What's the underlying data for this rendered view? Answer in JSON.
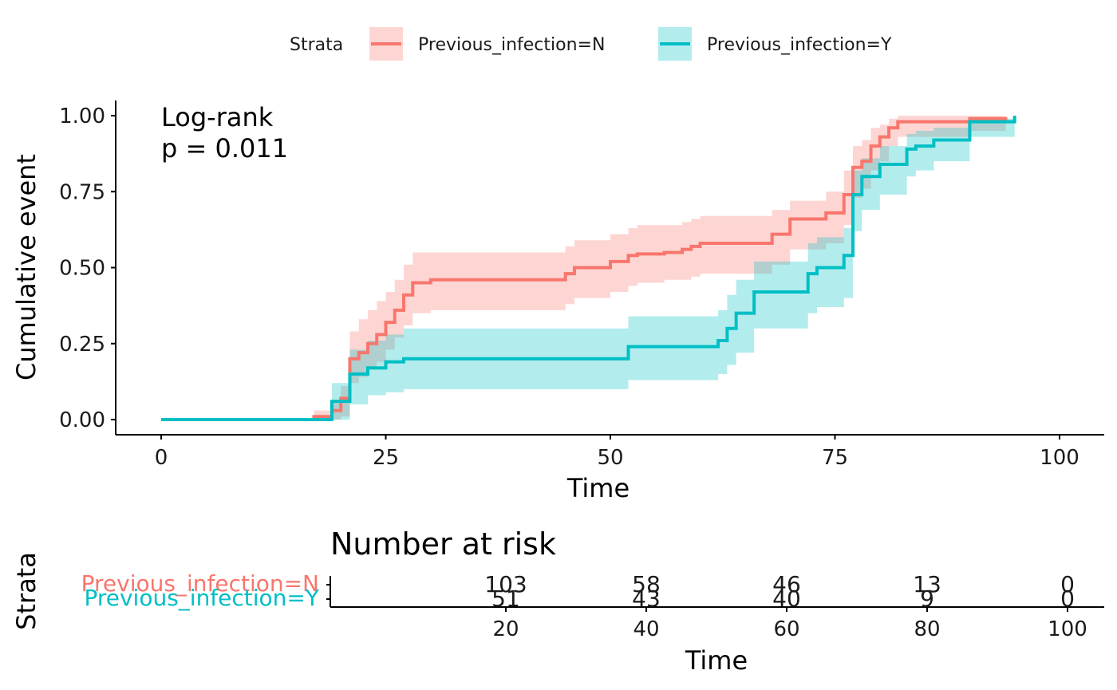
{
  "legend": {
    "title": "Strata",
    "items": [
      {
        "label": "Previous_infection=N",
        "color": "#F8766D"
      },
      {
        "label": "Previous_infection=Y",
        "color": "#00BFC4"
      }
    ]
  },
  "chart_data": [
    {
      "type": "line",
      "subtype": "step-with-confidence-band",
      "xlabel": "Time",
      "ylabel": "Cumulative event",
      "xlim": [
        0,
        100
      ],
      "ylim": [
        0,
        1
      ],
      "xticks": [
        0,
        25,
        50,
        75,
        100
      ],
      "yticks": [
        0.0,
        0.25,
        0.5,
        0.75,
        1.0
      ],
      "ytick_labels": [
        "0.00",
        "0.25",
        "0.50",
        "0.75",
        "1.00"
      ],
      "grid": false,
      "legend_position": "top",
      "annotation": {
        "line1": "Log-rank",
        "line2": "p = 0.011"
      },
      "series": [
        {
          "name": "Previous_infection=N",
          "color": "#F8766D",
          "x": [
            0,
            17,
            19,
            20,
            21,
            22,
            23,
            24,
            25,
            26,
            27,
            28,
            30,
            45,
            46,
            50,
            52,
            53,
            54,
            56,
            58,
            59,
            60,
            62,
            68,
            70,
            74,
            76,
            77,
            78,
            79,
            80,
            81,
            82,
            84,
            88,
            90,
            94
          ],
          "y": [
            0,
            0.01,
            0.03,
            0.07,
            0.2,
            0.22,
            0.25,
            0.28,
            0.32,
            0.36,
            0.41,
            0.45,
            0.46,
            0.48,
            0.5,
            0.52,
            0.54,
            0.545,
            0.545,
            0.55,
            0.56,
            0.57,
            0.58,
            0.58,
            0.61,
            0.66,
            0.68,
            0.74,
            0.83,
            0.85,
            0.9,
            0.93,
            0.96,
            0.98,
            0.98,
            0.98,
            0.99,
            0.995
          ],
          "lower": [
            0,
            0,
            0,
            0.01,
            0.12,
            0.14,
            0.17,
            0.19,
            0.23,
            0.27,
            0.31,
            0.35,
            0.36,
            0.38,
            0.4,
            0.42,
            0.44,
            0.45,
            0.45,
            0.46,
            0.46,
            0.47,
            0.48,
            0.48,
            0.51,
            0.56,
            0.58,
            0.64,
            0.73,
            0.76,
            0.82,
            0.85,
            0.9,
            0.93,
            0.93,
            0.93,
            0.95,
            0.97
          ],
          "upper": [
            0,
            0.03,
            0.06,
            0.11,
            0.29,
            0.33,
            0.36,
            0.39,
            0.42,
            0.46,
            0.51,
            0.55,
            0.55,
            0.57,
            0.59,
            0.61,
            0.63,
            0.64,
            0.64,
            0.64,
            0.65,
            0.66,
            0.67,
            0.67,
            0.69,
            0.72,
            0.75,
            0.82,
            0.9,
            0.92,
            0.96,
            0.97,
            0.99,
            1.0,
            1.0,
            1.0,
            1.0,
            1.0
          ]
        },
        {
          "name": "Previous_infection=Y",
          "color": "#00BFC4",
          "x": [
            0,
            19,
            20,
            21,
            23,
            25,
            27,
            35,
            52,
            53,
            59,
            62,
            63,
            64,
            66,
            72,
            73,
            76,
            77,
            78,
            80,
            83,
            84,
            86,
            90,
            95
          ],
          "y": [
            0,
            0.06,
            0.06,
            0.15,
            0.17,
            0.19,
            0.2,
            0.2,
            0.24,
            0.24,
            0.24,
            0.26,
            0.3,
            0.35,
            0.42,
            0.48,
            0.5,
            0.54,
            0.74,
            0.8,
            0.84,
            0.89,
            0.9,
            0.92,
            0.98,
            1.0
          ],
          "lower": [
            0,
            0,
            0,
            0.05,
            0.08,
            0.09,
            0.1,
            0.1,
            0.13,
            0.13,
            0.13,
            0.15,
            0.18,
            0.22,
            0.3,
            0.35,
            0.37,
            0.4,
            0.62,
            0.69,
            0.74,
            0.8,
            0.82,
            0.85,
            0.93,
            0.96
          ],
          "upper": [
            0,
            0.12,
            0.12,
            0.23,
            0.26,
            0.28,
            0.3,
            0.3,
            0.34,
            0.34,
            0.34,
            0.36,
            0.41,
            0.46,
            0.52,
            0.58,
            0.6,
            0.63,
            0.82,
            0.86,
            0.9,
            0.94,
            0.95,
            0.96,
            0.99,
            1.0
          ]
        }
      ]
    },
    {
      "type": "table",
      "title": "Number at risk",
      "xlabel": "Time",
      "ylabel": "Strata",
      "xlim": [
        0,
        103
      ],
      "xticks": [
        20,
        40,
        60,
        80,
        100
      ],
      "rows": [
        {
          "label": "Previous_infection=N",
          "color": "#F8766D",
          "values": [
            "103",
            "58",
            "46",
            "13",
            "0"
          ]
        },
        {
          "label": "Previous_infection=Y",
          "color": "#00BFC4",
          "values": [
            "51",
            "43",
            "40",
            "9",
            "0"
          ]
        }
      ]
    }
  ]
}
